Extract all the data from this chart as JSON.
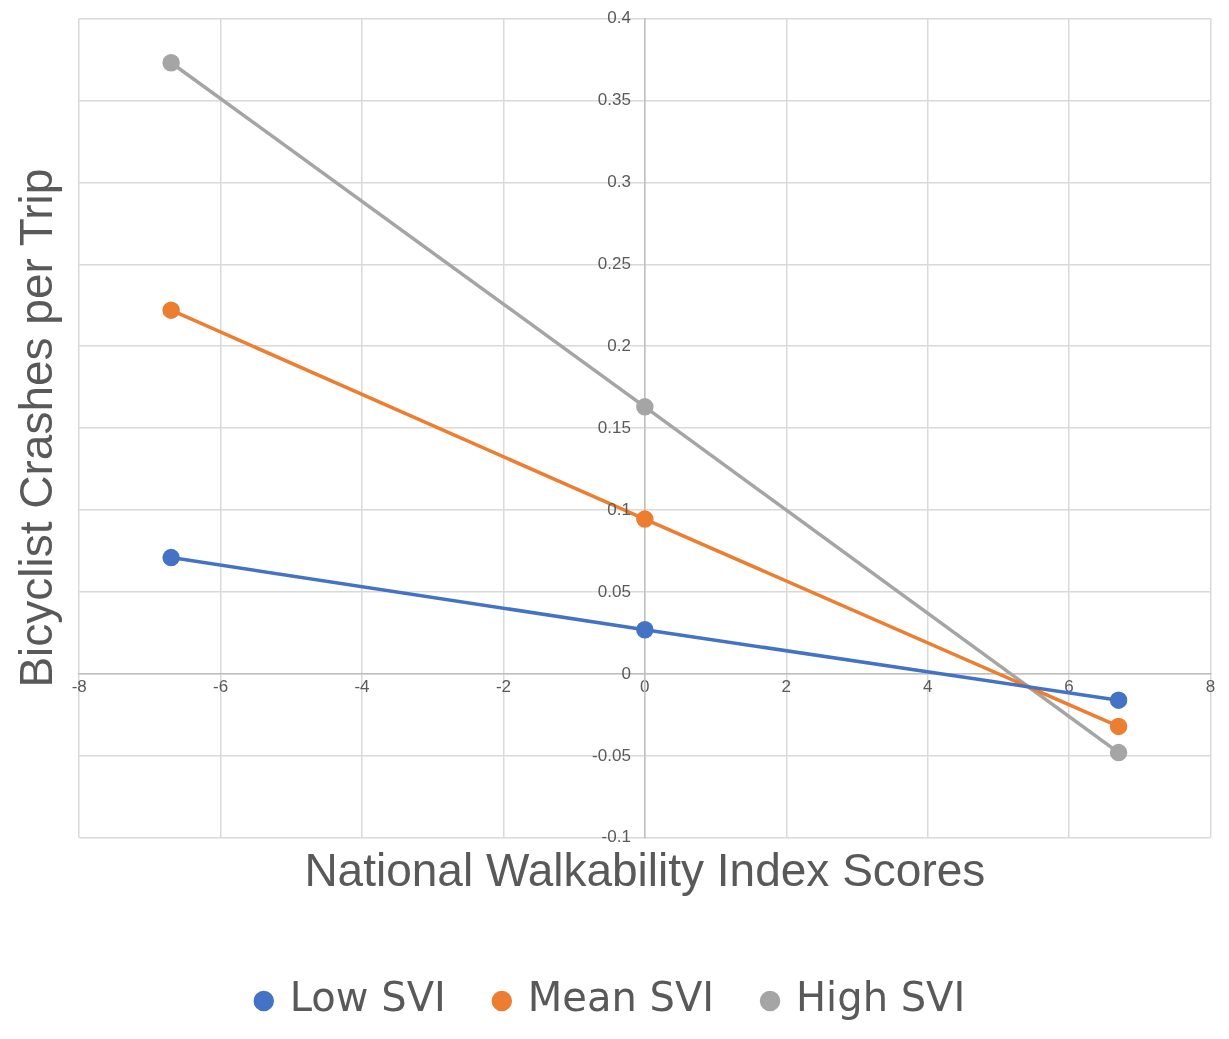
{
  "chart_data": {
    "type": "line",
    "xlabel": "National Walkability Index Scores",
    "ylabel": "Bicyclist Crashes per Trip",
    "x": [
      -6.7,
      0,
      6.7
    ],
    "series": [
      {
        "name": "Low SVI",
        "color": "#4472c4",
        "values": [
          0.071,
          0.027,
          -0.016
        ]
      },
      {
        "name": "Mean SVI",
        "color": "#ed7d31",
        "values": [
          0.222,
          0.0945,
          -0.032
        ]
      },
      {
        "name": "High SVI",
        "color": "#a5a5a5",
        "values": [
          0.373,
          0.163,
          -0.048
        ]
      }
    ],
    "xlim": [
      -8,
      8
    ],
    "xticks": [
      -8,
      -6,
      -4,
      -2,
      0,
      2,
      4,
      6,
      8
    ],
    "ylim": [
      -0.1,
      0.4
    ],
    "yticks": [
      -0.1,
      -0.05,
      0,
      0.05,
      0.1,
      0.15,
      0.2,
      0.25,
      0.3,
      0.35,
      0.4
    ],
    "grid": true,
    "legend": "bottom",
    "marker": "circle",
    "line_style": "solid"
  }
}
